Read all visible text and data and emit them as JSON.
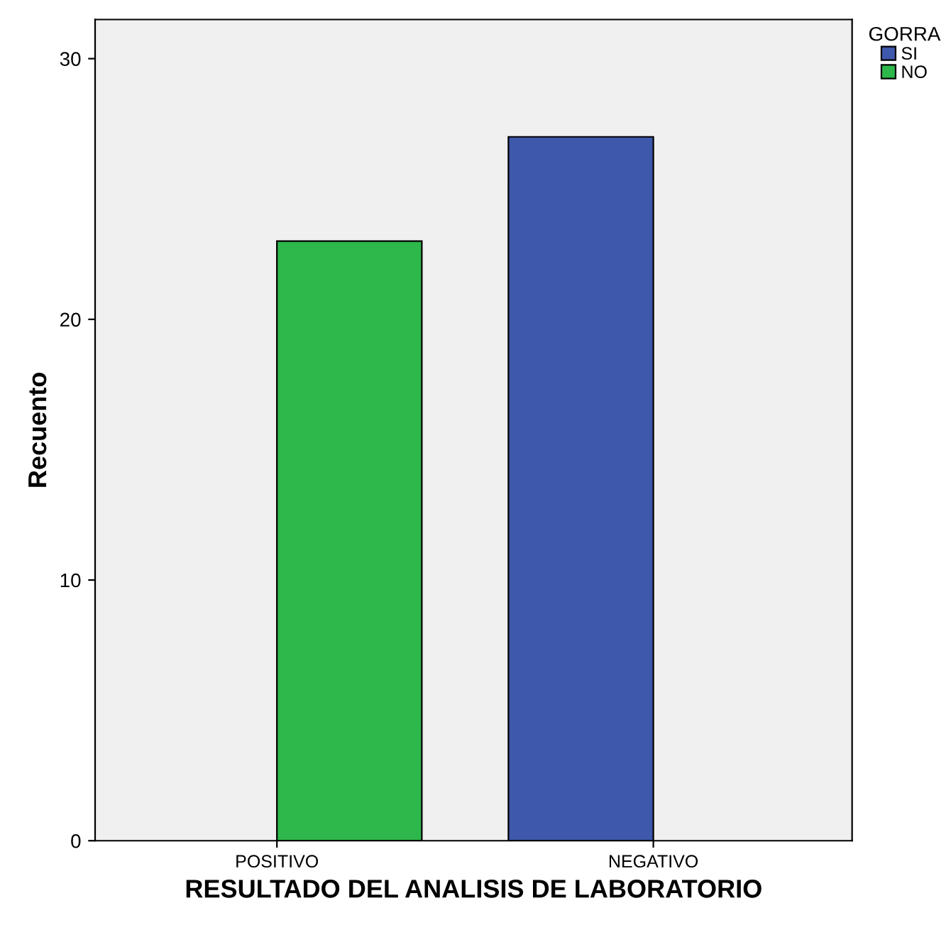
{
  "chart_data": {
    "type": "bar",
    "xlabel": "RESULTADO DEL ANALISIS DE LABORATORIO",
    "ylabel": "Recuento",
    "legend_title": "GORRA",
    "categories": [
      "POSITIVO",
      "NEGATIVO"
    ],
    "series": [
      {
        "name": "SI",
        "color": "#3e58ac",
        "values": [
          null,
          27
        ]
      },
      {
        "name": "NO",
        "color": "#2eb84b",
        "values": [
          23,
          null
        ]
      }
    ],
    "ylim": [
      0,
      31.5
    ],
    "yticks": [
      0,
      10,
      20,
      30
    ],
    "grid": false,
    "legend": "top right"
  }
}
